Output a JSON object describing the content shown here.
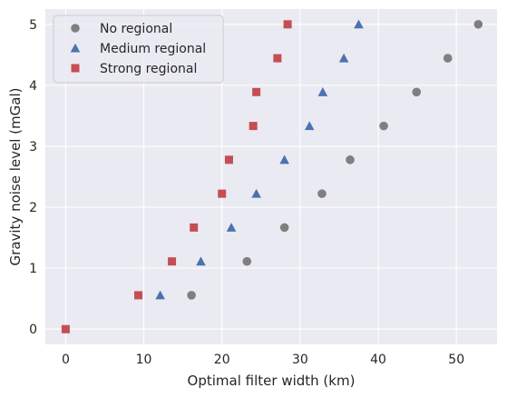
{
  "chart_data": {
    "type": "scatter",
    "title": "",
    "xlabel": "Optimal filter width (km)",
    "ylabel": "Gravity noise level (mGal)",
    "xlim": [
      -2.6,
      55.2
    ],
    "ylim": [
      -0.25,
      5.25
    ],
    "xticks": [
      0,
      10,
      20,
      30,
      40,
      50
    ],
    "yticks": [
      0,
      1,
      2,
      3,
      4,
      5
    ],
    "grid": true,
    "legend_position": "top-left",
    "background": "#eaeaf2",
    "series": [
      {
        "name": "No regional",
        "marker": "circle",
        "color": "#7f7f7f",
        "points": [
          [
            16.1,
            0.556
          ],
          [
            23.2,
            1.111
          ],
          [
            28.0,
            1.667
          ],
          [
            32.8,
            2.222
          ],
          [
            36.4,
            2.778
          ],
          [
            40.7,
            3.333
          ],
          [
            44.9,
            3.889
          ],
          [
            48.9,
            4.444
          ],
          [
            52.8,
            5.0
          ]
        ]
      },
      {
        "name": "Medium regional",
        "marker": "triangle",
        "color": "#4c72b0",
        "points": [
          [
            12.1,
            0.556
          ],
          [
            17.3,
            1.111
          ],
          [
            21.2,
            1.667
          ],
          [
            24.4,
            2.222
          ],
          [
            28.0,
            2.778
          ],
          [
            31.2,
            3.333
          ],
          [
            32.9,
            3.889
          ],
          [
            35.6,
            4.444
          ],
          [
            37.5,
            5.0
          ]
        ]
      },
      {
        "name": "Strong regional",
        "marker": "square",
        "color": "#c44e52",
        "points": [
          [
            0.0,
            0.0
          ],
          [
            9.3,
            0.556
          ],
          [
            13.6,
            1.111
          ],
          [
            16.4,
            1.667
          ],
          [
            20.0,
            2.222
          ],
          [
            20.9,
            2.778
          ],
          [
            24.0,
            3.333
          ],
          [
            24.4,
            3.889
          ],
          [
            27.1,
            4.444
          ],
          [
            28.4,
            5.0
          ]
        ]
      }
    ]
  }
}
